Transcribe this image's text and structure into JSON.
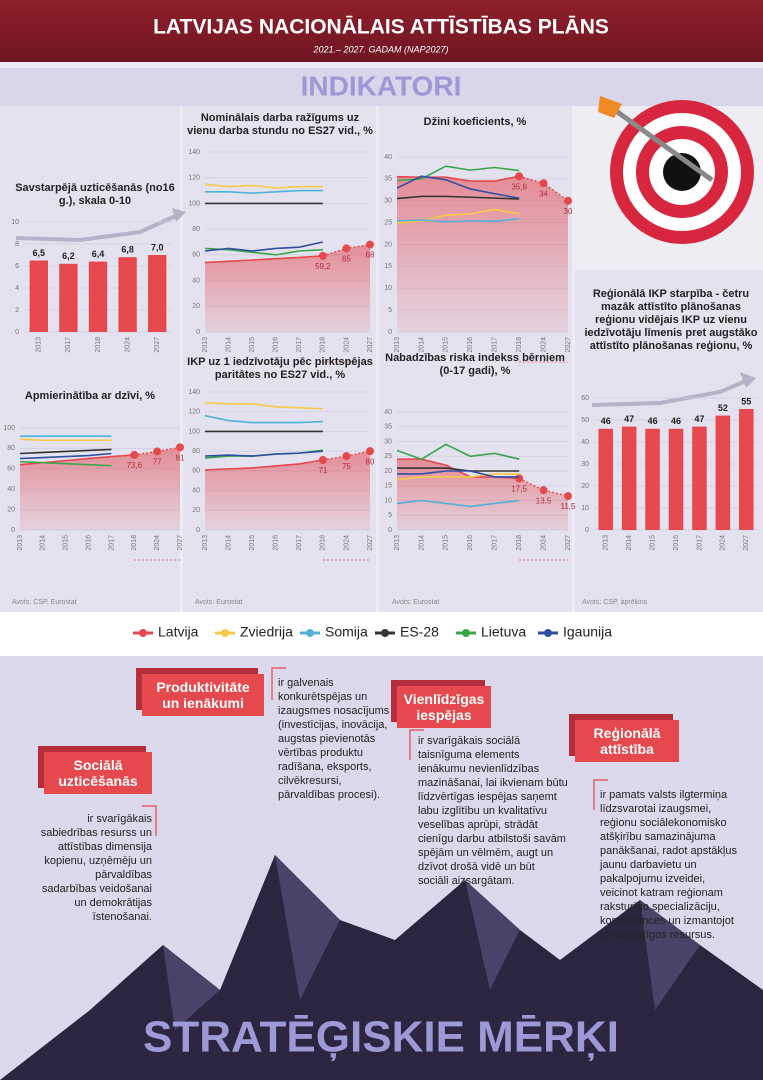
{
  "header": {
    "title": "LATVIJAS NACIONĀLAIS ATTĪSTĪBAS PLĀNS",
    "subtitle": "2021.– 2027. GADAM (NAP2027)",
    "section": "INDIKATORI"
  },
  "chart_data": [
    {
      "type": "bar",
      "title": "Savstarpējā uzticēšanās (no16 g.), skala 0-10",
      "categories": [
        "2013",
        "2017",
        "2018",
        "2024",
        "2027"
      ],
      "values": [
        6.5,
        6.2,
        6.4,
        6.8,
        7.0
      ],
      "value_labels": [
        "6,5",
        "6,2",
        "6,4",
        "6,8",
        "7,0"
      ],
      "color": "#e5484d",
      "ylim": [
        0,
        10
      ],
      "yticks": [
        0,
        2,
        4,
        6,
        8,
        10
      ],
      "grid": true
    },
    {
      "type": "line",
      "title": "Nominālais darba ražīgums uz vienu darba stundu no ES27 vid., %",
      "categories": [
        "2013",
        "2014",
        "2015",
        "2016",
        "2017",
        "2018",
        "2024",
        "2027"
      ],
      "ylim": [
        0,
        140
      ],
      "yticks": [
        0,
        20,
        40,
        60,
        80,
        100,
        120,
        140
      ],
      "grid": true,
      "series": [
        {
          "name": "Latvija",
          "color": "#e5484d",
          "values": [
            54,
            55,
            56,
            57,
            58,
            59.2,
            65,
            68
          ],
          "value_labels": [
            null,
            null,
            null,
            null,
            null,
            "59,2",
            "65",
            "68"
          ]
        },
        {
          "name": "Zviedrija",
          "color": "#f7c948",
          "values": [
            115,
            113,
            114,
            112,
            113,
            113,
            null,
            null
          ]
        },
        {
          "name": "Somija",
          "color": "#4fb3d9",
          "values": [
            109,
            109,
            108,
            109,
            110,
            110,
            null,
            null
          ]
        },
        {
          "name": "ES-28",
          "color": "#333333",
          "values": [
            100,
            100,
            100,
            100,
            100,
            100,
            null,
            null
          ]
        },
        {
          "name": "Lietuva",
          "color": "#3aa64a",
          "values": [
            65,
            64,
            62,
            60,
            63,
            64,
            null,
            null
          ]
        },
        {
          "name": "Igaunija",
          "color": "#2f4fa2",
          "values": [
            63,
            65,
            63,
            65,
            66,
            70,
            null,
            null
          ]
        }
      ]
    },
    {
      "type": "line",
      "title": "Džini koeficients, %",
      "categories": [
        "2013",
        "2014",
        "2015",
        "2016",
        "2017",
        "2018",
        "2024",
        "2027"
      ],
      "ylim": [
        0,
        40
      ],
      "yticks": [
        0,
        5,
        10,
        15,
        20,
        25,
        30,
        35,
        40
      ],
      "grid": true,
      "series": [
        {
          "name": "Latvija",
          "color": "#e5484d",
          "values": [
            35.5,
            35.4,
            35.4,
            34.5,
            34.5,
            35.6,
            34,
            30
          ],
          "value_labels": [
            null,
            null,
            null,
            null,
            null,
            "35,6",
            "34",
            "30"
          ]
        },
        {
          "name": "Zviedrija",
          "color": "#f7c948",
          "values": [
            24.9,
            25.4,
            26.7,
            27,
            28,
            27,
            null,
            null
          ]
        },
        {
          "name": "Somija",
          "color": "#4fb3d9",
          "values": [
            25.4,
            25.6,
            25.2,
            25.4,
            25.3,
            25.9,
            null,
            null
          ]
        },
        {
          "name": "ES-28",
          "color": "#333333",
          "values": [
            30.5,
            31,
            31,
            30.8,
            30.6,
            30.4,
            null,
            null
          ]
        },
        {
          "name": "Lietuva",
          "color": "#3aa64a",
          "values": [
            34.6,
            35,
            37.9,
            37,
            37.6,
            36.9,
            null,
            null
          ]
        },
        {
          "name": "Igaunija",
          "color": "#2f4fa2",
          "values": [
            32.9,
            35.6,
            34.8,
            32.7,
            31.6,
            30.6,
            null,
            null
          ]
        }
      ]
    },
    {
      "type": "line",
      "title": "Apmierinātība ar dzīvi, %",
      "source": "Avots: CSP, Eurostat",
      "categories": [
        "2013",
        "2014",
        "2015",
        "2016",
        "2017",
        "2018",
        "2024",
        "2027"
      ],
      "ylim": [
        0,
        100
      ],
      "yticks": [
        0,
        20,
        40,
        60,
        80,
        100
      ],
      "grid": true,
      "series": [
        {
          "name": "Latvija",
          "color": "#e5484d",
          "values": [
            64,
            66,
            68,
            70,
            72,
            73.6,
            77,
            81
          ],
          "value_labels": [
            null,
            null,
            null,
            null,
            null,
            "73,6",
            "77",
            "81"
          ]
        },
        {
          "name": "Zviedrija",
          "color": "#f7c948",
          "values": [
            89,
            88,
            88,
            88,
            88,
            null,
            null,
            null
          ]
        },
        {
          "name": "Somija",
          "color": "#4fb3d9",
          "values": [
            92,
            92,
            92,
            92,
            92,
            null,
            null,
            null
          ]
        },
        {
          "name": "ES-28",
          "color": "#333333",
          "values": [
            75,
            76,
            77,
            78,
            79,
            null,
            null,
            null
          ]
        },
        {
          "name": "Lietuva",
          "color": "#3aa64a",
          "values": [
            67,
            66,
            65,
            64,
            63,
            null,
            null,
            null
          ]
        },
        {
          "name": "Igaunija",
          "color": "#2f4fa2",
          "values": [
            70,
            71,
            72,
            73,
            75,
            null,
            null,
            null
          ]
        }
      ]
    },
    {
      "type": "line",
      "title": "IKP uz 1 iedzīvotāju pēc pirktspējas paritātes no ES27 vid., %",
      "source": "Avots: Eurostat",
      "categories": [
        "2013",
        "2014",
        "2015",
        "2016",
        "2017",
        "2018",
        "2024",
        "2027"
      ],
      "ylim": [
        0,
        140
      ],
      "yticks": [
        0,
        20,
        40,
        60,
        80,
        100,
        120,
        140
      ],
      "grid": true,
      "series": [
        {
          "name": "Latvija",
          "color": "#e5484d",
          "values": [
            61,
            62,
            63,
            65,
            67,
            71,
            75,
            80
          ],
          "value_labels": [
            null,
            null,
            null,
            null,
            null,
            "71",
            "75",
            "80"
          ]
        },
        {
          "name": "Zviedrija",
          "color": "#f7c948",
          "values": [
            129,
            128,
            128,
            125,
            124,
            123,
            null,
            null
          ]
        },
        {
          "name": "Somija",
          "color": "#4fb3d9",
          "values": [
            116,
            111,
            109,
            109,
            109,
            110,
            null,
            null
          ]
        },
        {
          "name": "ES-28",
          "color": "#333333",
          "values": [
            100,
            100,
            100,
            100,
            100,
            100,
            null,
            null
          ]
        },
        {
          "name": "Lietuva",
          "color": "#3aa64a",
          "values": [
            73,
            75,
            75,
            77,
            78,
            81,
            null,
            null
          ]
        },
        {
          "name": "Igaunija",
          "color": "#2f4fa2",
          "values": [
            75,
            76,
            75,
            77,
            78,
            80,
            null,
            null
          ]
        }
      ]
    },
    {
      "type": "line",
      "title": "Nabadzības riska indekss bērniem (0-17 gadi), %",
      "source": "Avots: Eurostat",
      "categories": [
        "2013",
        "2014",
        "2015",
        "2016",
        "2017",
        "2018",
        "2024",
        "2027"
      ],
      "ylim": [
        0,
        40
      ],
      "yticks": [
        0,
        5,
        10,
        15,
        20,
        25,
        30,
        35,
        40
      ],
      "grid": true,
      "series": [
        {
          "name": "Latvija",
          "color": "#e5484d",
          "values": [
            24,
            24,
            22,
            18,
            18,
            17.5,
            13.5,
            11.5
          ],
          "value_labels": [
            null,
            null,
            null,
            null,
            null,
            "17,5",
            "13,5",
            "11,5"
          ]
        },
        {
          "name": "Zviedrija",
          "color": "#f7c948",
          "values": [
            17,
            18,
            18,
            18,
            19,
            19,
            null,
            null
          ]
        },
        {
          "name": "Somija",
          "color": "#4fb3d9",
          "values": [
            9,
            10,
            9,
            8,
            9,
            10,
            null,
            null
          ]
        },
        {
          "name": "ES-28",
          "color": "#333333",
          "values": [
            21,
            21,
            21,
            20,
            20,
            20,
            null,
            null
          ]
        },
        {
          "name": "Lietuva",
          "color": "#3aa64a",
          "values": [
            27,
            24,
            29,
            25,
            26,
            24,
            null,
            null
          ]
        },
        {
          "name": "Igaunija",
          "color": "#2f4fa2",
          "values": [
            19,
            19,
            20,
            20,
            18,
            18,
            null,
            null
          ]
        }
      ]
    },
    {
      "type": "bar",
      "title": "Reģionālā IKP starpība - četru mazāk attīstīto plānošanas reģionu vidējais IKP uz vienu iedzīvotāju līmenis pret augstāko attīstīto plānošanas reģionu, %",
      "source": "Avots: CSP, aprēķins",
      "categories": [
        "2013",
        "2014",
        "2015",
        "2016",
        "2017",
        "2024",
        "2027"
      ],
      "values": [
        46,
        47,
        46,
        46,
        47,
        52,
        55
      ],
      "color": "#e5484d",
      "ylim": [
        0,
        60
      ],
      "yticks": [
        0,
        10,
        20,
        30,
        40,
        50,
        60
      ],
      "grid": true
    }
  ],
  "goals": [
    {
      "title": "Produktivitāte un ienākumi",
      "text": "ir galvenais konkurētspējas un izaugsmes nosacījums (investīcijas, inovācija, augstas pievienotās vērtības produktu radīšana, eksports, cilvēkresursi, pārvaldības procesi)."
    },
    {
      "title": "Vienlīdzīgas iespējas",
      "text": "ir svarīgākais sociālā taisnīguma elements ienākumu nevienlīdzības mazināšanai, lai ikvienam būtu līdzvērtīgas iespējas saņemt labu izglītību un kvalitatīvu veselības aprūpi, strādāt cienīgu darbu atbilstoši savām spējām un vēlmēm, augt un dzīvot drošā vidē un būt sociāli aizsargātam."
    },
    {
      "title": "Reģionālā attīstība",
      "text": "ir pamats valsts ilgtermiņa līdzsvarotai izaugsmei, reģionu sociālekonomisko atšķirību samazinājuma panākšanai, radot apstākļus jaunu darbavietu un pakalpojumu izveidei, veicinot katram reģionam raksturīgo specializāciju, kompetences un izmantojot to raksturīgos resursus."
    },
    {
      "title": "Sociālā uzticēšanās",
      "text": "ir svarīgākais sabiedrības resurss un attīstības dimensija kopienu, uzņēmēju un pārvaldības sadarbības veidošanai un demokrātijas īstenošanai."
    }
  ],
  "footer": {
    "title": "STRATĒĢISKIE MĒRĶI"
  }
}
